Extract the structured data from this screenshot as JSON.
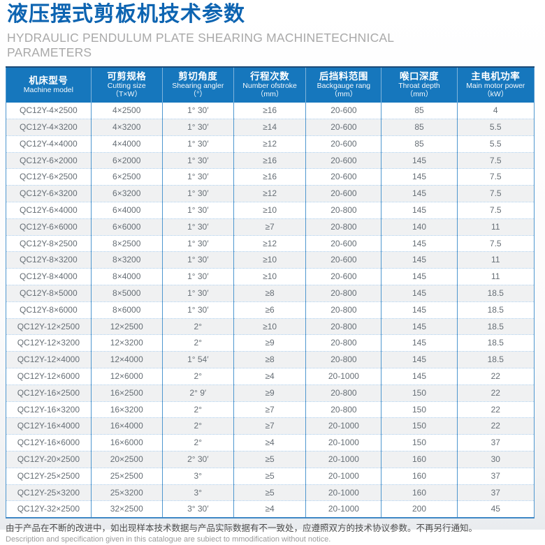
{
  "page": {
    "title": "液压摆式剪板机技术参数",
    "subtitle": "HYDRAULIC PENDULUM PLATE SHEARING MACHINETECHNICAL PARAMETERS"
  },
  "colors": {
    "title_blue": "#0d64b1",
    "header_bg": "#1677bd",
    "column_divider": "#4f97cf",
    "row_dotted_divider": "#a3c7e8",
    "alt_row_bg": "#f0f1f2",
    "subtitle_gray": "#a9a9a9"
  },
  "table": {
    "columns": [
      {
        "cn": "机床型号",
        "en": "Machine model",
        "unit": ""
      },
      {
        "cn": "可剪规格",
        "en": "Cutting size",
        "unit": "（T×W）"
      },
      {
        "cn": "剪切角度",
        "en": "Shearing angler",
        "unit": "（°）"
      },
      {
        "cn": "行程次数",
        "en": "Number ofstroke",
        "unit": "（mm）"
      },
      {
        "cn": "后挡料范围",
        "en": "Backgauge rang",
        "unit": "（mm）"
      },
      {
        "cn": "喉口深度",
        "en": "Throat depth",
        "unit": "（mm）"
      },
      {
        "cn": "主电机功率",
        "en": "Main motor power",
        "unit": "（kW）"
      }
    ],
    "rows": [
      [
        "QC12Y-4×2500",
        "4×2500",
        "1° 30′",
        "≥16",
        "20-600",
        "85",
        "4"
      ],
      [
        "QC12Y-4×3200",
        "4×3200",
        "1° 30′",
        "≥14",
        "20-600",
        "85",
        "5.5"
      ],
      [
        "QC12Y-4×4000",
        "4×4000",
        "1° 30′",
        "≥12",
        "20-600",
        "85",
        "5.5"
      ],
      [
        "QC12Y-6×2000",
        "6×2000",
        "1° 30′",
        "≥16",
        "20-600",
        "145",
        "7.5"
      ],
      [
        "QC12Y-6×2500",
        "6×2500",
        "1° 30′",
        "≥16",
        "20-600",
        "145",
        "7.5"
      ],
      [
        "QC12Y-6×3200",
        "6×3200",
        "1° 30′",
        "≥12",
        "20-600",
        "145",
        "7.5"
      ],
      [
        "QC12Y-6×4000",
        "6×4000",
        "1° 30′",
        "≥10",
        "20-800",
        "145",
        "7.5"
      ],
      [
        "QC12Y-6×6000",
        "6×6000",
        "1° 30′",
        "≥7",
        "20-800",
        "140",
        "11"
      ],
      [
        "QC12Y-8×2500",
        "8×2500",
        "1° 30′",
        "≥12",
        "20-600",
        "145",
        "7.5"
      ],
      [
        "QC12Y-8×3200",
        "8×3200",
        "1° 30′",
        "≥10",
        "20-600",
        "145",
        "11"
      ],
      [
        "QC12Y-8×4000",
        "8×4000",
        "1° 30′",
        "≥10",
        "20-600",
        "145",
        "11"
      ],
      [
        "QC12Y-8×5000",
        "8×5000",
        "1° 30′",
        "≥8",
        "20-800",
        "145",
        "18.5"
      ],
      [
        "QC12Y-8×6000",
        "8×6000",
        "1° 30′",
        "≥6",
        "20-800",
        "145",
        "18.5"
      ],
      [
        "QC12Y-12×2500",
        "12×2500",
        "2°",
        "≥10",
        "20-800",
        "145",
        "18.5"
      ],
      [
        "QC12Y-12×3200",
        "12×3200",
        "2°",
        "≥9",
        "20-800",
        "145",
        "18.5"
      ],
      [
        "QC12Y-12×4000",
        "12×4000",
        "1° 54′",
        "≥8",
        "20-800",
        "145",
        "18.5"
      ],
      [
        "QC12Y-12×6000",
        "12×6000",
        "2°",
        "≥4",
        "20-1000",
        "145",
        "22"
      ],
      [
        "QC12Y-16×2500",
        "16×2500",
        "2° 9′",
        "≥9",
        "20-800",
        "150",
        "22"
      ],
      [
        "QC12Y-16×3200",
        "16×3200",
        "2°",
        "≥7",
        "20-800",
        "150",
        "22"
      ],
      [
        "QC12Y-16×4000",
        "16×4000",
        "2°",
        "≥7",
        "20-1000",
        "150",
        "22"
      ],
      [
        "QC12Y-16×6000",
        "16×6000",
        "2°",
        "≥4",
        "20-1000",
        "150",
        "37"
      ],
      [
        "QC12Y-20×2500",
        "20×2500",
        "2° 30′",
        "≥5",
        "20-1000",
        "160",
        "30"
      ],
      [
        "QC12Y-25×2500",
        "25×2500",
        "3°",
        "≥5",
        "20-1000",
        "160",
        "37"
      ],
      [
        "QC12Y-25×3200",
        "25×3200",
        "3°",
        "≥5",
        "20-1000",
        "160",
        "37"
      ],
      [
        "QC12Y-32×2500",
        "32×2500",
        "3° 30′",
        "≥4",
        "20-1000",
        "200",
        "45"
      ]
    ]
  },
  "footer": {
    "cn": "由于产品在不断的改进中，如出现样本技术数据与产品实际数据有不一致处，应遵照双方的技术协议参数。不再另行通知。",
    "en": "Description and specification given in this catalogue are subiect to mmodification without notice."
  }
}
